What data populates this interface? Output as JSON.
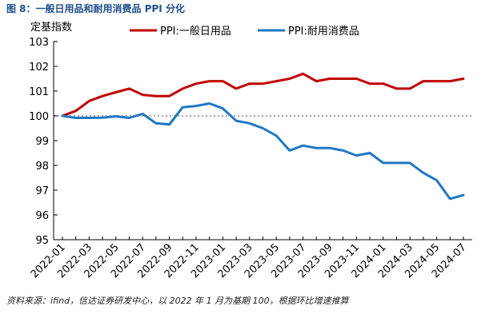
{
  "figure_title": "图 8：一般日用品和耐用消费品 PPI 分化",
  "source_note": "资料来源：ifind，信达证券研发中心，以 2022 年 1 月为基期 100，根据环比增速推算",
  "colors": {
    "title": "#1f4e8c",
    "series1": "#c00000",
    "series2": "#1f77c4",
    "baseline": "#a6a6a6"
  },
  "chart_data": {
    "type": "line",
    "ylabel": "定基指数",
    "ylim": [
      95,
      103
    ],
    "yticks": [
      "95",
      "96",
      "97",
      "98",
      "99",
      "100",
      "101",
      "102",
      "103"
    ],
    "legend_position": "top",
    "reference_line": 100,
    "xtick_labels": [
      "2022-01",
      "2022-03",
      "2022-05",
      "2022-07",
      "2022-09",
      "2022-11",
      "2023-01",
      "2023-03",
      "2023-05",
      "2023-07",
      "2023-09",
      "2023-11",
      "2024-01",
      "2024-03",
      "2024-05",
      "2024-07"
    ],
    "x": [
      "2022-01",
      "2022-02",
      "2022-03",
      "2022-04",
      "2022-05",
      "2022-06",
      "2022-07",
      "2022-08",
      "2022-09",
      "2022-10",
      "2022-11",
      "2022-12",
      "2023-01",
      "2023-02",
      "2023-03",
      "2023-04",
      "2023-05",
      "2023-06",
      "2023-07",
      "2023-08",
      "2023-09",
      "2023-10",
      "2023-11",
      "2023-12",
      "2024-01",
      "2024-02",
      "2024-03",
      "2024-04",
      "2024-05",
      "2024-06",
      "2024-07"
    ],
    "series": [
      {
        "name": "PPI:一般日用品",
        "values": [
          100.0,
          100.2,
          100.6,
          100.8,
          100.95,
          101.1,
          100.85,
          100.8,
          100.8,
          101.1,
          101.3,
          101.4,
          101.4,
          101.1,
          101.3,
          101.3,
          101.4,
          101.5,
          101.7,
          101.4,
          101.5,
          101.5,
          101.5,
          101.3,
          101.3,
          101.1,
          101.1,
          101.4,
          101.4,
          101.4,
          101.5
        ]
      },
      {
        "name": "PPI:耐用消费品",
        "values": [
          100.0,
          99.92,
          99.92,
          99.93,
          99.98,
          99.92,
          100.08,
          99.7,
          99.65,
          100.35,
          100.4,
          100.5,
          100.3,
          99.8,
          99.7,
          99.5,
          99.2,
          98.6,
          98.8,
          98.7,
          98.7,
          98.6,
          98.4,
          98.5,
          98.1,
          98.1,
          98.1,
          97.7,
          97.4,
          96.65,
          96.8
        ]
      }
    ]
  }
}
